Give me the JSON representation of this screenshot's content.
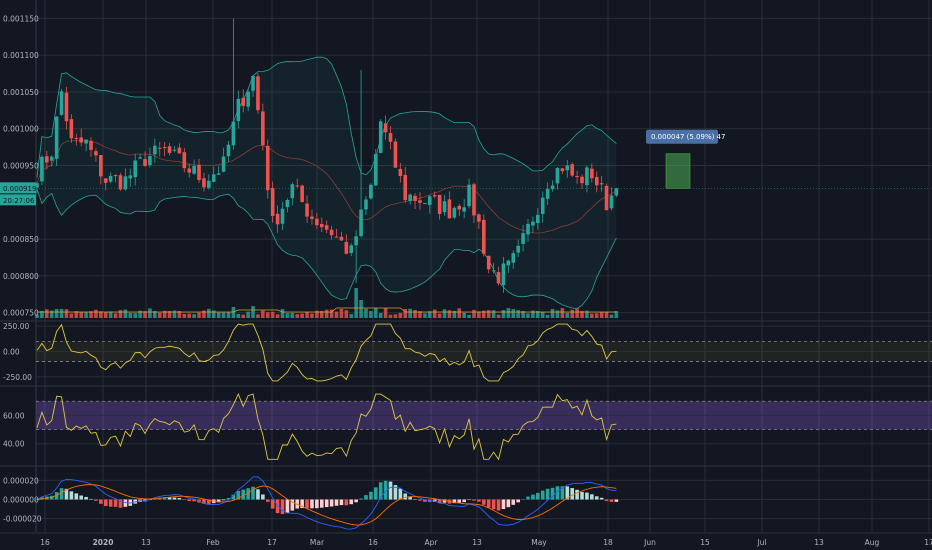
{
  "colors": {
    "background": "#131722",
    "grid": "#2a2e39",
    "up": "#26a69a",
    "down": "#ef5350",
    "bollinger_band": "#26a69a",
    "bollinger_fill": "rgba(38,166,154,0.08)",
    "bollinger_basis": "#8e3a3a",
    "oscillator": "#e0c940",
    "rsi_band_fill": "rgba(126,87,194,0.35)",
    "macd_line": "#2962ff",
    "signal_line": "#ff6d00",
    "price_tag": "#26a69a",
    "projection_box": "rgba(76,175,80,0.55)",
    "projection_label": "#4a6fa5"
  },
  "price_tag": {
    "price": "0.000919",
    "countdown": "20:27:06"
  },
  "projection": {
    "label": "0.000047 (5.09%) 47"
  },
  "chart_data": [
    {
      "type": "candlestick",
      "title": "",
      "x_ticks": [
        "16",
        "2020",
        "13",
        "Feb",
        "17",
        "Mar",
        "16",
        "Apr",
        "13",
        "May",
        "18",
        "Jun",
        "15",
        "Jul",
        "13",
        "Aug",
        "17"
      ],
      "y_ticks": [
        {
          "label": "0.001150",
          "value": 0.00115
        },
        {
          "label": "0.001100",
          "value": 0.0011
        },
        {
          "label": "0.001050",
          "value": 0.00105
        },
        {
          "label": "0.001000",
          "value": 0.001
        },
        {
          "label": "0.000950",
          "value": 0.00095
        },
        {
          "label": "0.000850",
          "value": 0.00085
        },
        {
          "label": "0.000800",
          "value": 0.0008
        },
        {
          "label": "0.000750",
          "value": 0.00075
        }
      ],
      "ylim": [
        0.00074,
        0.001175
      ],
      "grid": true,
      "bollinger_bands": true,
      "volume_bars": true,
      "keypoints": [
        [
          0,
          0.00094
        ],
        [
          3,
          0.00097
        ],
        [
          5,
          0.00105
        ],
        [
          7,
          0.00098
        ],
        [
          10,
          0.00098
        ],
        [
          14,
          0.00093
        ],
        [
          18,
          0.00093
        ],
        [
          22,
          0.00096
        ],
        [
          26,
          0.00097
        ],
        [
          30,
          0.00095
        ],
        [
          34,
          0.00093
        ],
        [
          38,
          0.00095
        ],
        [
          41,
          0.00103
        ],
        [
          44,
          0.00107
        ],
        [
          46,
          0.00098
        ],
        [
          48,
          0.00087
        ],
        [
          52,
          0.00092
        ],
        [
          56,
          0.00088
        ],
        [
          60,
          0.00086
        ],
        [
          64,
          0.00083
        ],
        [
          66,
          0.00088
        ],
        [
          68,
          0.00092
        ],
        [
          70,
          0.00101
        ],
        [
          72,
          0.00097
        ],
        [
          75,
          0.00091
        ],
        [
          80,
          0.0009
        ],
        [
          84,
          0.00089
        ],
        [
          88,
          0.00091
        ],
        [
          90,
          0.00087
        ],
        [
          92,
          0.00081
        ],
        [
          94,
          0.0008
        ],
        [
          96,
          0.00081
        ],
        [
          98,
          0.00083
        ],
        [
          101,
          0.00088
        ],
        [
          104,
          0.00093
        ],
        [
          107,
          0.00095
        ],
        [
          110,
          0.00093
        ],
        [
          113,
          0.00094
        ],
        [
          116,
          0.0009
        ],
        [
          118,
          0.000919
        ]
      ],
      "last_price": 0.000919,
      "projection_target": 0.000966
    },
    {
      "type": "line",
      "name": "",
      "y_ticks": [
        {
          "label": "250.00",
          "value": 250
        },
        {
          "label": "0.00",
          "value": 0
        },
        {
          "label": "-250.00",
          "value": -250
        }
      ],
      "ylim": [
        -330,
        290
      ],
      "dashed_levels": [
        100,
        -100
      ],
      "shaded_range": [
        -100,
        100
      ]
    },
    {
      "type": "line",
      "name": "",
      "y_ticks": [
        {
          "label": "60.00",
          "value": 60
        },
        {
          "label": "40.00",
          "value": 40
        }
      ],
      "ylim": [
        25,
        80
      ],
      "dashed_levels": [
        70,
        50
      ],
      "shaded_range": [
        50,
        70
      ]
    },
    {
      "type": "histogram",
      "name": "",
      "y_ticks": [
        {
          "label": "0.000020",
          "value": 2e-05
        },
        {
          "label": "0.000000",
          "value": 0
        },
        {
          "label": "-0.000020",
          "value": -2e-05
        }
      ],
      "ylim": [
        -3.4e-05,
        3.4e-05
      ]
    }
  ]
}
